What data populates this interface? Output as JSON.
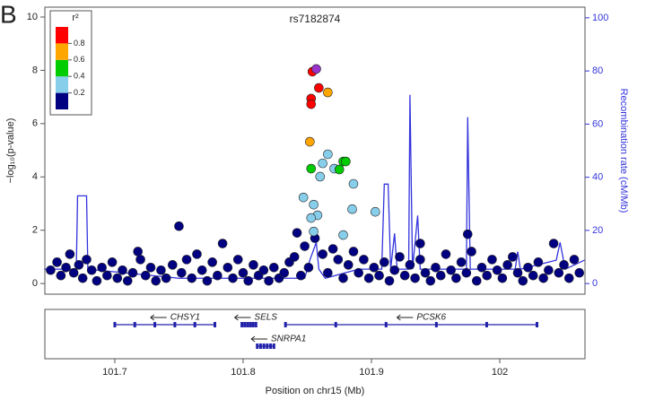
{
  "chart_data": {
    "type": "scatter",
    "panel_label": "B",
    "title": "rs7182874",
    "x_label": "Position on chr15 (Mb)",
    "y_label": "−log₁₀(p-value)",
    "y2_label": "Recombination rate (cM/Mb)",
    "xlim": [
      101.6455,
      102.0664
    ],
    "xticks": [
      101.7,
      101.8,
      101.9,
      102
    ],
    "ylim": [
      -0.4,
      10.37
    ],
    "yticks": [
      0,
      2,
      4,
      6,
      8,
      10
    ],
    "y2lim": [
      -4,
      104
    ],
    "y2ticks": [
      0,
      20,
      40,
      60,
      80,
      100
    ],
    "legend": {
      "title": "r²",
      "colors": [
        "#000080",
        "#87ceeb",
        "#00cc00",
        "#ffa500",
        "#ff0000"
      ],
      "ticks": [
        0.2,
        0.4,
        0.6,
        0.8
      ]
    },
    "series": [
      {
        "color": "#000080",
        "x": [
          101.65,
          101.655,
          101.658,
          101.662,
          101.665,
          101.668,
          101.672,
          101.675,
          101.678,
          101.682,
          101.686,
          101.69,
          101.694,
          101.698,
          101.702,
          101.706,
          101.71,
          101.714,
          101.718,
          101.72,
          101.724,
          101.728,
          101.732,
          101.736,
          101.74,
          101.745,
          101.75,
          101.752,
          101.756,
          101.76,
          101.764,
          101.768,
          101.772,
          101.776,
          101.78,
          101.784,
          101.788,
          101.792,
          101.796,
          101.8,
          101.804,
          101.808,
          101.812,
          101.816,
          101.82,
          101.824,
          101.828,
          101.832,
          101.836,
          101.84,
          101.842,
          101.845,
          101.848,
          101.851,
          101.856,
          101.862,
          101.866,
          101.87,
          101.874,
          101.878,
          101.882,
          101.886,
          101.89,
          101.894,
          101.898,
          101.902,
          101.906,
          101.91,
          101.914,
          101.918,
          101.922,
          101.926,
          101.93,
          101.934,
          101.938,
          101.942,
          101.946,
          101.95,
          101.954,
          101.958,
          101.962,
          101.966,
          101.97,
          101.974,
          101.978,
          101.982,
          101.986,
          101.99,
          101.994,
          101.998,
          102.002,
          102.006,
          102.01,
          102.014,
          102.018,
          102.022,
          102.026,
          102.03,
          102.034,
          102.038,
          102.042,
          102.046,
          102.05,
          102.054,
          102.058,
          102.062,
          101.975,
          101.938
        ],
        "values": [
          0.5,
          0.8,
          0.3,
          0.6,
          1.1,
          0.4,
          0.7,
          0.2,
          0.9,
          0.5,
          0.1,
          0.6,
          0.3,
          0.8,
          0.2,
          0.5,
          0.1,
          0.4,
          1.2,
          0.9,
          0.3,
          0.6,
          0.1,
          0.5,
          0.2,
          0.7,
          2.15,
          0.4,
          0.9,
          0.2,
          1.1,
          0.5,
          0.1,
          0.8,
          0.3,
          1.5,
          0.6,
          0.2,
          0.9,
          0.4,
          0.1,
          0.7,
          0.3,
          0.5,
          0.1,
          0.6,
          0.2,
          0.4,
          0.8,
          1.0,
          1.9,
          0.3,
          1.4,
          0.6,
          1.7,
          1.1,
          0.4,
          1.3,
          0.9,
          0.2,
          0.7,
          1.2,
          0.4,
          0.9,
          0.2,
          0.6,
          0.3,
          0.8,
          0.1,
          0.5,
          1.0,
          0.3,
          0.7,
          0.2,
          0.9,
          0.4,
          0.1,
          0.6,
          0.3,
          1.1,
          0.5,
          0.2,
          0.8,
          0.4,
          1.2,
          0.1,
          0.6,
          0.3,
          0.9,
          0.5,
          0.2,
          0.7,
          1.0,
          0.4,
          0.1,
          0.6,
          0.3,
          0.8,
          0.2,
          0.5,
          1.5,
          0.4,
          0.7,
          0.2,
          0.9,
          0.4,
          1.85,
          1.5
        ]
      },
      {
        "color": "#87ceeb",
        "x": [
          101.866,
          101.862,
          101.86,
          101.871,
          101.886,
          101.847,
          101.855,
          101.858,
          101.853,
          101.885,
          101.903,
          101.855,
          101.878
        ],
        "values": [
          4.85,
          4.51,
          4.01,
          4.31,
          3.74,
          3.23,
          2.96,
          2.56,
          2.46,
          2.79,
          2.69,
          1.95,
          1.82
        ]
      },
      {
        "color": "#00cc00",
        "x": [
          101.853,
          101.878,
          101.88,
          101.875
        ],
        "values": [
          4.31,
          4.58,
          4.58,
          4.28
        ]
      },
      {
        "color": "#ffa500",
        "x": [
          101.866,
          101.852
        ],
        "values": [
          7.17,
          5.32
        ]
      },
      {
        "color": "#ff0000",
        "x": [
          101.854,
          101.859,
          101.853,
          101.853
        ],
        "values": [
          7.95,
          7.34,
          6.94,
          6.73
        ]
      },
      {
        "color": "#9933cc",
        "x": [
          101.857
        ],
        "values": [
          8.05
        ]
      }
    ],
    "recombination": {
      "color": "#3333dd",
      "axis": "y2",
      "x": [
        101.645,
        101.67,
        101.671,
        101.678,
        101.679,
        101.75,
        101.848,
        101.852,
        101.857,
        101.859,
        101.864,
        101.89,
        101.908,
        101.91,
        101.913,
        101.915,
        101.918,
        101.92,
        101.929,
        101.93,
        101.932,
        101.936,
        101.938,
        101.974,
        101.975,
        101.977,
        102.012,
        102.014,
        102.016,
        102.044,
        102.047,
        102.051,
        102.066
      ],
      "values": [
        5.4,
        5.4,
        33,
        33,
        5.4,
        2,
        2,
        8.8,
        15.5,
        5.4,
        2,
        5.4,
        5.4,
        37.4,
        37.4,
        5.4,
        18.9,
        5.4,
        5.4,
        71,
        5.4,
        25.6,
        5.4,
        5.4,
        62.6,
        5.4,
        5.4,
        12,
        5.4,
        8.8,
        15.5,
        5.4,
        8.8
      ]
    },
    "genes": [
      {
        "name": "CHSY1",
        "start": 101.7,
        "end": 101.778,
        "row": 0
      },
      {
        "name": "SELS",
        "start": 101.799,
        "end": 101.81,
        "row": 0
      },
      {
        "name": "SNRPA1",
        "start": 101.811,
        "end": 101.824,
        "row": 1
      },
      {
        "name": "PCSK6",
        "start": 101.833,
        "end": 102.029,
        "row": 0
      }
    ]
  }
}
